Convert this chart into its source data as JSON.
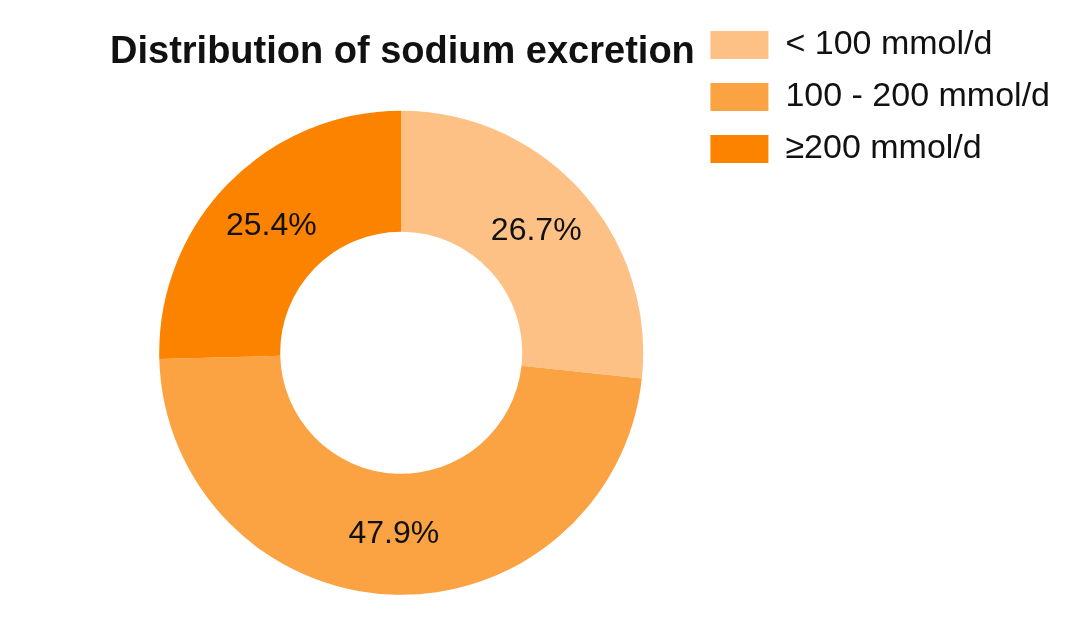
{
  "chart_data": {
    "type": "donut",
    "title": "Distribution of sodium excretion",
    "categories": [
      "< 100 mmol/d",
      "100 - 200 mmol/d",
      "≥200 mmol/d"
    ],
    "values": [
      26.7,
      47.9,
      25.4
    ],
    "colors": [
      "#fdc186",
      "#fba243",
      "#fb8300"
    ],
    "value_labels": [
      "26.7%",
      "47.9%",
      "25.4%"
    ],
    "legend": "top right"
  }
}
